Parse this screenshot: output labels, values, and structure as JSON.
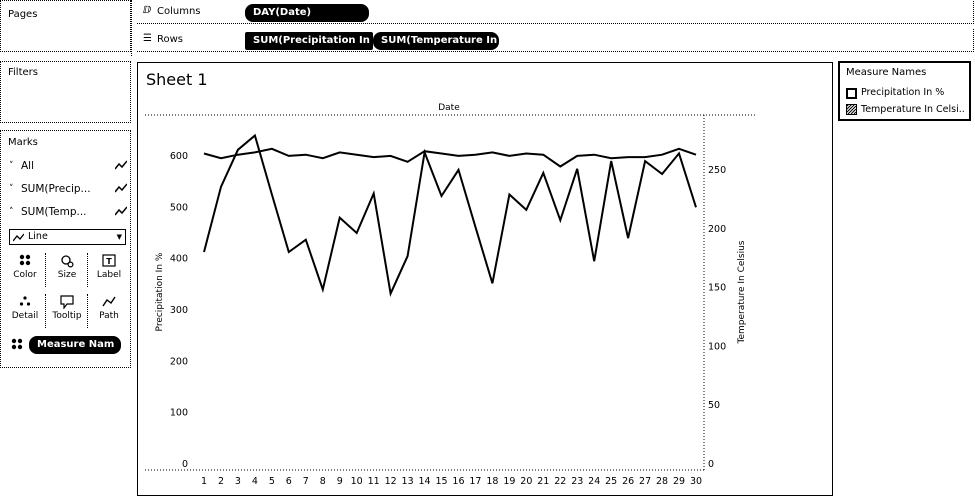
{
  "shelves": {
    "pages_label": "Pages",
    "columns_label": "Columns",
    "rows_label": "Rows",
    "columns_pill": "DAY(Date)",
    "rows_pills": [
      "SUM(Precipitation In",
      "SUM(Temperature In"
    ]
  },
  "filters": {
    "label": "Filters"
  },
  "marks": {
    "label": "Marks",
    "items": [
      {
        "label": "All",
        "caret": "˅"
      },
      {
        "label": "SUM(Precip...",
        "caret": "˅"
      },
      {
        "label": "SUM(Temp...",
        "caret": "˄"
      }
    ],
    "type_select": "Line",
    "buttons": [
      "Color",
      "Size",
      "Label",
      "Detail",
      "Tooltip",
      "Path"
    ],
    "color_pill": "Measure Nam"
  },
  "sheet": {
    "title": "Sheet 1",
    "column_header": "Date"
  },
  "legend": {
    "title": "Measure Names",
    "items": [
      "Precipitation In %",
      "Temperature In Celsi.."
    ]
  },
  "chart_data": {
    "type": "line",
    "x": [
      1,
      2,
      3,
      4,
      5,
      6,
      7,
      8,
      9,
      10,
      11,
      12,
      13,
      14,
      15,
      16,
      17,
      18,
      19,
      20,
      21,
      22,
      23,
      24,
      25,
      26,
      27,
      28,
      29,
      30
    ],
    "left_axis": {
      "label": "Precipitation In %",
      "range": [
        0,
        700
      ],
      "ticks": [
        0,
        100,
        200,
        300,
        400,
        500,
        600
      ]
    },
    "right_axis": {
      "label": "Temperature In Celsius",
      "range": [
        0,
        290
      ],
      "ticks": [
        0,
        50,
        100,
        150,
        200,
        250
      ]
    },
    "series": [
      {
        "name": "Precipitation In %",
        "axis": "left",
        "values": [
          413,
          540,
          612,
          640,
          525,
          413,
          437,
          340,
          480,
          450,
          527,
          332,
          405,
          607,
          522,
          573,
          462,
          352,
          525,
          495,
          567,
          475,
          575,
          395,
          590,
          440,
          590,
          565,
          605,
          500
        ]
      },
      {
        "name": "Temperature In Celsius",
        "axis": "right",
        "values": [
          264,
          260,
          263,
          265,
          268,
          262,
          263,
          260,
          265,
          263,
          261,
          262,
          257,
          266,
          264,
          262,
          263,
          265,
          262,
          264,
          263,
          253,
          262,
          263,
          260,
          261,
          261,
          263,
          268,
          263
        ]
      }
    ],
    "grid": false,
    "legend_position": "right"
  }
}
